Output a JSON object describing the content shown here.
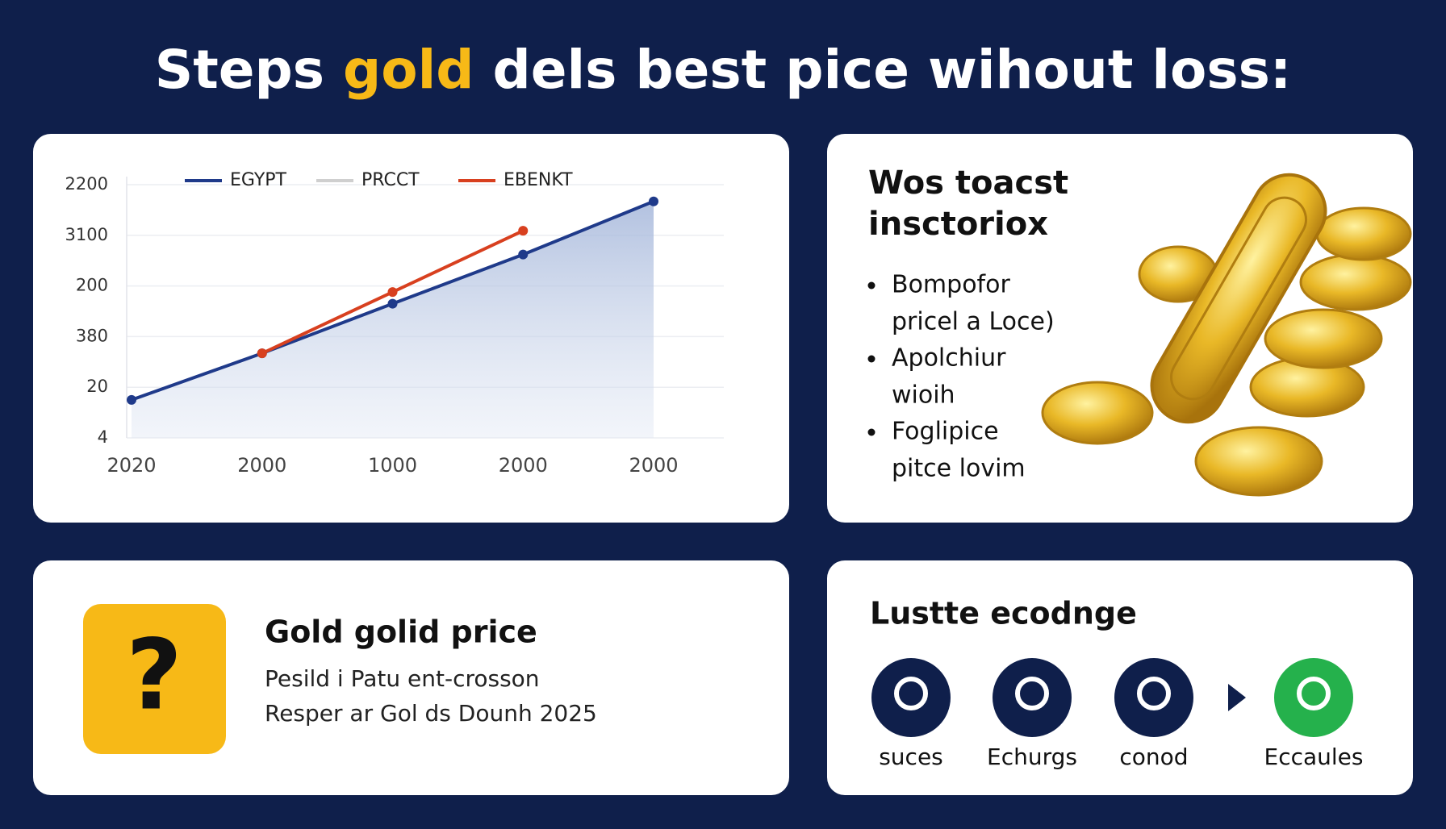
{
  "title": {
    "parts": [
      "Steps",
      "gold",
      "dels best pice wihout loss:"
    ]
  },
  "chart_data": {
    "type": "line",
    "categories": [
      "2020",
      "2000",
      "1000",
      "2000",
      "2000"
    ],
    "series": [
      {
        "name": "EGYPT",
        "color": "#1f3a8a",
        "values": [
          0.75,
          1.67,
          2.65,
          3.62,
          4.67
        ]
      },
      {
        "name": "PRCCT",
        "color": "#cfcfcf",
        "values": [
          null,
          null,
          null,
          null,
          null
        ]
      },
      {
        "name": "EBENKT",
        "color": "#d8401f",
        "values": [
          null,
          1.67,
          2.88,
          4.09,
          null
        ]
      }
    ],
    "ylim": [
      0,
      5
    ],
    "yticks": [
      {
        "value": 0,
        "label": "4"
      },
      {
        "value": 1,
        "label": "20"
      },
      {
        "value": 2,
        "label": "380"
      },
      {
        "value": 3,
        "label": "200"
      },
      {
        "value": 4,
        "label": "3100"
      },
      {
        "value": 5,
        "label": "2200"
      }
    ],
    "grid": true
  },
  "tips": {
    "heading": [
      "Wos toacst",
      "insctoriox"
    ],
    "bullets": [
      [
        "Bompofor",
        "pricel a Loce)"
      ],
      [
        "Apolchiur",
        "wioih"
      ],
      [
        "Foglipice",
        "pitce lovim"
      ]
    ]
  },
  "question": {
    "heading": "Gold golid price",
    "lines": [
      "Pesild i Patu ent-crosson",
      "Resper ar Gol ds Dounh 2025"
    ]
  },
  "exchange": {
    "heading": "Lustte ecodnge",
    "items": [
      "suces",
      "Echurgs",
      "conod",
      "Eccaules"
    ]
  }
}
